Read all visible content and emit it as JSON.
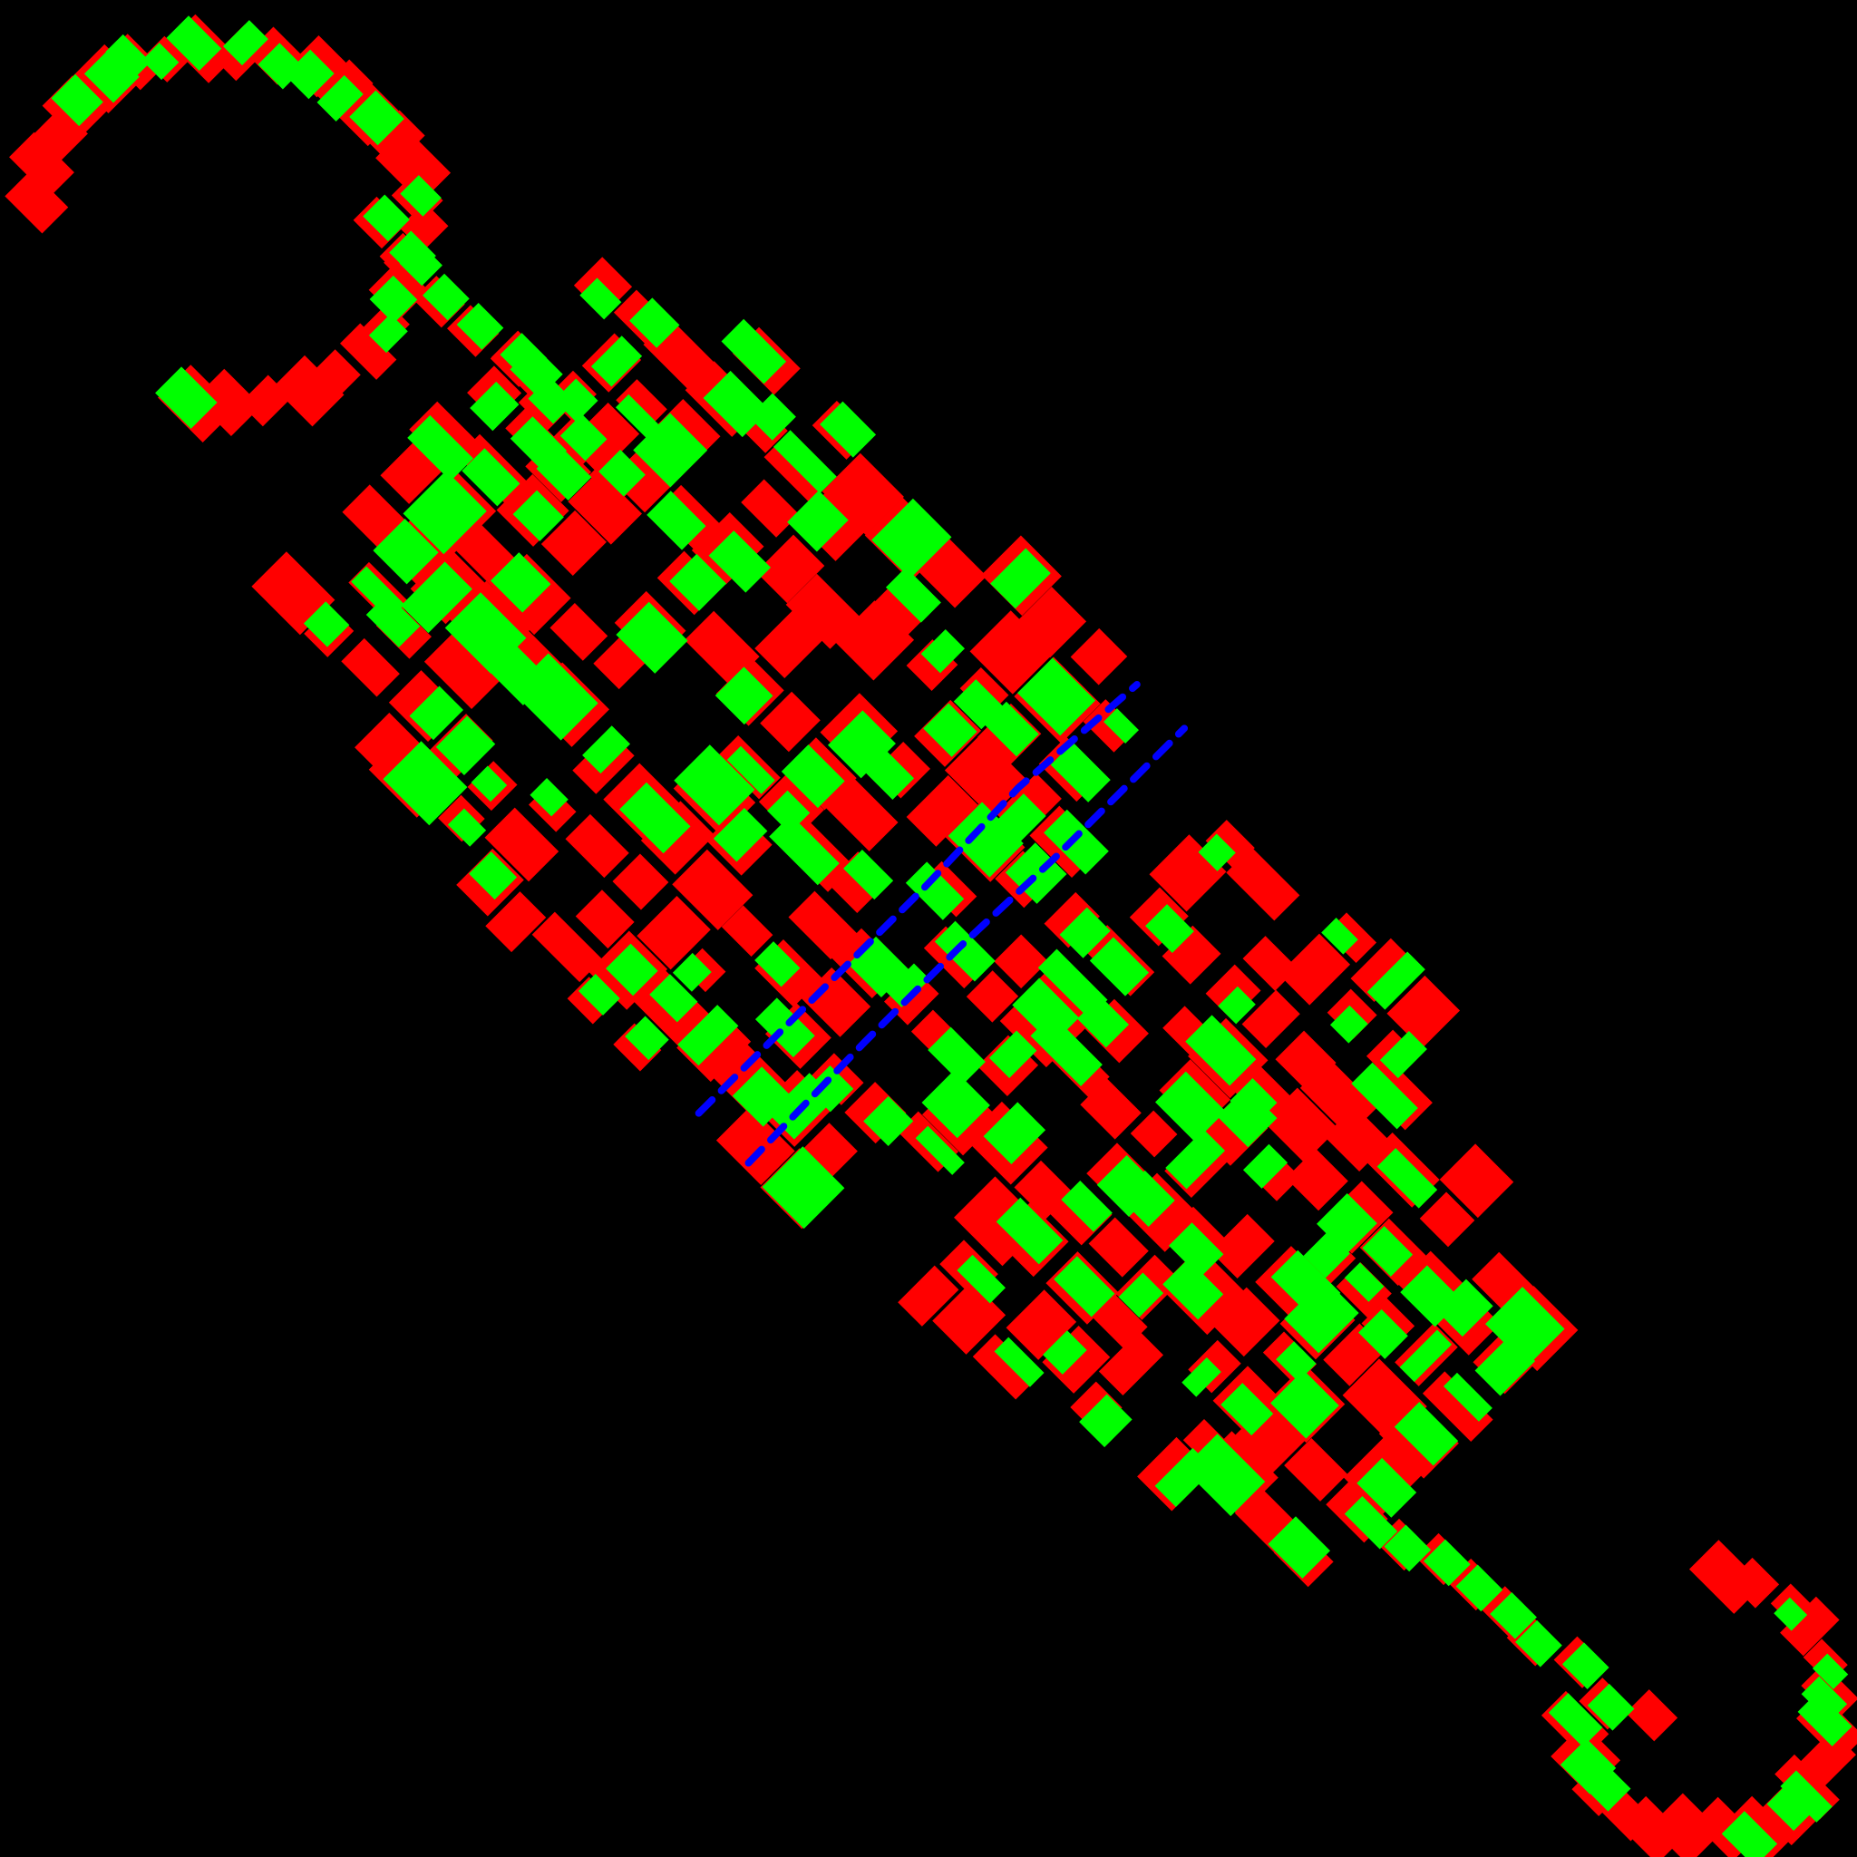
{
  "colors": {
    "background": "#000000",
    "primary": "#ff0000",
    "secondary": "#00ff00",
    "path": "#0000ff"
  },
  "legend": []
}
